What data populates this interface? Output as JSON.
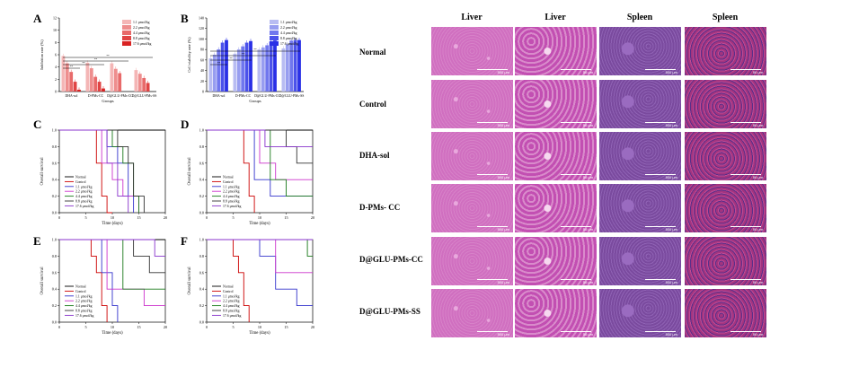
{
  "panels": [
    "A",
    "B",
    "C",
    "D",
    "E",
    "F"
  ],
  "chart_data": [
    {
      "panel": "A",
      "type": "bar",
      "categories": [
        "DHA-sol",
        "D-PMs-CC",
        "D@GLU-PMs-CC",
        "D@GLU-PMs-SS"
      ],
      "xlabel": "Groups",
      "ylabel": "Inhibition rate (%)",
      "ylim": [
        0,
        12
      ],
      "yticks": [
        "0",
        "2",
        "4",
        "6",
        "8",
        "10",
        "12"
      ],
      "series": [
        {
          "name": "1.1 μmol/kg",
          "color": "#f4b6b6",
          "values": [
            5.8,
            4.7,
            4.6,
            3.5
          ]
        },
        {
          "name": "2.2 μmol/kg",
          "color": "#ee8e8e",
          "values": [
            4.6,
            3.8,
            3.7,
            2.9
          ]
        },
        {
          "name": "4.4 μmol/kg",
          "color": "#e86a6a",
          "values": [
            3.2,
            2.4,
            3.0,
            2.2
          ]
        },
        {
          "name": "8.8 μmol/kg",
          "color": "#e04444",
          "values": [
            1.6,
            1.6,
            0,
            1.4
          ]
        },
        {
          "name": "17.6 μmol/kg",
          "color": "#d92323",
          "values": [
            0.3,
            0.5,
            0,
            0
          ]
        }
      ],
      "significance": [
        "**",
        "**",
        "**",
        "**"
      ]
    },
    {
      "panel": "B",
      "type": "bar",
      "categories": [
        "DHA-sol",
        "D-PMs-CC",
        "D@GLU-PMs-CC",
        "D@GLU-PMs-SS"
      ],
      "xlabel": "Groups",
      "ylabel": "Cell viability rate (%)",
      "ylim": [
        0,
        140
      ],
      "yticks": [
        "0",
        "20",
        "40",
        "60",
        "80",
        "100",
        "120",
        "140"
      ],
      "series": [
        {
          "name": "1.1 μmol/kg",
          "color": "#b8bcf2",
          "values": [
            63,
            72,
            80,
            82
          ]
        },
        {
          "name": "2.2 μmol/kg",
          "color": "#979df0",
          "values": [
            70,
            80,
            84,
            90
          ]
        },
        {
          "name": "4.4 μmol/kg",
          "color": "#7077ee",
          "values": [
            80,
            86,
            88,
            97
          ]
        },
        {
          "name": "8.8 μmol/kg",
          "color": "#4b52ea",
          "values": [
            93,
            93,
            95,
            98
          ]
        },
        {
          "name": "17.6 μmol/kg",
          "color": "#2a30e6",
          "values": [
            98,
            96,
            97,
            98
          ]
        }
      ],
      "significance": [
        "**",
        "**",
        "**",
        "**"
      ]
    },
    {
      "panel": "C",
      "type": "line",
      "xlabel": "Time (days)",
      "ylabel": "Overall survival",
      "xlim": [
        0,
        20
      ],
      "ylim": [
        0,
        1.0
      ],
      "xticks": [
        "0",
        "5",
        "10",
        "15",
        "20"
      ],
      "yticks": [
        "0.0",
        "0.2",
        "0.4",
        "0.6",
        "0.8",
        "1.0"
      ],
      "series": [
        {
          "name": "Normal",
          "color": "#000000",
          "x": [
            0,
            20
          ],
          "y": [
            1.0,
            1.0
          ]
        },
        {
          "name": "Control",
          "color": "#cc0000",
          "x": [
            0,
            7,
            7,
            8,
            8,
            9,
            9,
            10,
            10
          ],
          "y": [
            1.0,
            1.0,
            0.6,
            0.6,
            0.2,
            0.2,
            0,
            0,
            0
          ]
        },
        {
          "name": "1.1 μmol/kg",
          "color": "#3333cc",
          "x": [
            0,
            9,
            9,
            11,
            11,
            13,
            13,
            14,
            14
          ],
          "y": [
            1.0,
            1.0,
            0.8,
            0.8,
            0.6,
            0.6,
            0.2,
            0.2,
            0
          ]
        },
        {
          "name": "2.2 μmol/kg",
          "color": "#cc33cc",
          "x": [
            0,
            8,
            8,
            10,
            10,
            12,
            12,
            15,
            15
          ],
          "y": [
            1.0,
            1.0,
            0.6,
            0.6,
            0.4,
            0.4,
            0.2,
            0.2,
            0
          ]
        },
        {
          "name": "4.4 μmol/kg",
          "color": "#1a7a1a",
          "x": [
            0,
            10,
            10,
            12,
            12,
            14,
            14,
            15,
            15
          ],
          "y": [
            1.0,
            1.0,
            0.8,
            0.8,
            0.6,
            0.6,
            0.2,
            0.2,
            0
          ]
        },
        {
          "name": "8.8 μmol/kg",
          "color": "#333333",
          "x": [
            0,
            11,
            11,
            13,
            13,
            14,
            14,
            16,
            16
          ],
          "y": [
            1.0,
            1.0,
            0.8,
            0.8,
            0.6,
            0.6,
            0.2,
            0.2,
            0
          ]
        },
        {
          "name": "17.6 μmol/kg",
          "color": "#8833cc",
          "x": [
            0,
            9,
            9,
            11,
            11,
            13,
            13
          ],
          "y": [
            1.0,
            1.0,
            0.6,
            0.6,
            0.2,
            0.2,
            0
          ]
        }
      ]
    },
    {
      "panel": "D",
      "type": "line",
      "xlabel": "Time (days)",
      "ylabel": "Overall survival",
      "xlim": [
        0,
        20
      ],
      "ylim": [
        0,
        1.0
      ],
      "xticks": [
        "0",
        "5",
        "10",
        "15",
        "20"
      ],
      "yticks": [
        "0.0",
        "0.2",
        "0.4",
        "0.6",
        "0.8",
        "1.0"
      ],
      "series": [
        {
          "name": "Normal",
          "color": "#000000",
          "x": [
            0,
            20
          ],
          "y": [
            1.0,
            1.0
          ]
        },
        {
          "name": "Control",
          "color": "#cc0000",
          "x": [
            0,
            7,
            7,
            8,
            8,
            9,
            9
          ],
          "y": [
            1.0,
            1.0,
            0.6,
            0.6,
            0.2,
            0.2,
            0
          ]
        },
        {
          "name": "1.1 μmol/kg",
          "color": "#3333cc",
          "x": [
            0,
            9,
            9,
            12,
            12,
            20
          ],
          "y": [
            1.0,
            1.0,
            0.4,
            0.4,
            0.2,
            0.2
          ]
        },
        {
          "name": "2.2 μmol/kg",
          "color": "#cc33cc",
          "x": [
            0,
            10,
            10,
            13,
            13,
            20
          ],
          "y": [
            1.0,
            1.0,
            0.6,
            0.6,
            0.4,
            0.4
          ]
        },
        {
          "name": "4.4 μmol/kg",
          "color": "#1a7a1a",
          "x": [
            0,
            12,
            12,
            15,
            15,
            20
          ],
          "y": [
            1.0,
            1.0,
            0.4,
            0.4,
            0.2,
            0.2
          ]
        },
        {
          "name": "8.8 μmol/kg",
          "color": "#333333",
          "x": [
            0,
            15,
            15,
            17,
            17,
            20
          ],
          "y": [
            1.0,
            1.0,
            0.8,
            0.8,
            0.6,
            0.6
          ]
        },
        {
          "name": "17.6 μmol/kg",
          "color": "#8833cc",
          "x": [
            0,
            11,
            11,
            20
          ],
          "y": [
            1.0,
            1.0,
            0.8,
            0.8
          ]
        }
      ]
    },
    {
      "panel": "E",
      "type": "line",
      "xlabel": "Time (days)",
      "ylabel": "Overall survival",
      "xlim": [
        0,
        20
      ],
      "ylim": [
        0,
        1.0
      ],
      "xticks": [
        "0",
        "5",
        "10",
        "15",
        "20"
      ],
      "yticks": [
        "0.0",
        "0.2",
        "0.4",
        "0.6",
        "0.8",
        "1.0"
      ],
      "series": [
        {
          "name": "Normal",
          "color": "#000000",
          "x": [
            0,
            20
          ],
          "y": [
            1.0,
            1.0
          ]
        },
        {
          "name": "Control",
          "color": "#cc0000",
          "x": [
            0,
            6,
            6,
            7,
            7,
            8,
            8,
            9,
            9
          ],
          "y": [
            1.0,
            1.0,
            0.8,
            0.8,
            0.6,
            0.6,
            0.2,
            0.2,
            0
          ]
        },
        {
          "name": "1.1 μmol/kg",
          "color": "#3333cc",
          "x": [
            0,
            8,
            8,
            10,
            10,
            11,
            11
          ],
          "y": [
            1.0,
            1.0,
            0.6,
            0.6,
            0.2,
            0.2,
            0
          ]
        },
        {
          "name": "2.2 μmol/kg",
          "color": "#cc33cc",
          "x": [
            0,
            9,
            9,
            16,
            16,
            20
          ],
          "y": [
            1.0,
            1.0,
            0.4,
            0.4,
            0.2,
            0.2
          ]
        },
        {
          "name": "4.4 μmol/kg",
          "color": "#1a7a1a",
          "x": [
            0,
            12,
            12,
            20
          ],
          "y": [
            1.0,
            1.0,
            0.4,
            0.4
          ]
        },
        {
          "name": "8.8 μmol/kg",
          "color": "#333333",
          "x": [
            0,
            14,
            14,
            17,
            17,
            20
          ],
          "y": [
            1.0,
            1.0,
            0.8,
            0.8,
            0.6,
            0.6
          ]
        },
        {
          "name": "17.6 μmol/kg",
          "color": "#8833cc",
          "x": [
            0,
            18,
            18,
            20
          ],
          "y": [
            1.0,
            1.0,
            0.8,
            0.8
          ]
        }
      ]
    },
    {
      "panel": "F",
      "type": "line",
      "xlabel": "Time (days)",
      "ylabel": "Overall survival",
      "xlim": [
        0,
        20
      ],
      "ylim": [
        0,
        1.0
      ],
      "xticks": [
        "0",
        "5",
        "10",
        "15",
        "20"
      ],
      "yticks": [
        "0.0",
        "0.2",
        "0.4",
        "0.6",
        "0.8",
        "1.0"
      ],
      "series": [
        {
          "name": "Normal",
          "color": "#000000",
          "x": [
            0,
            20
          ],
          "y": [
            1.0,
            1.0
          ]
        },
        {
          "name": "Control",
          "color": "#cc0000",
          "x": [
            0,
            5,
            5,
            6,
            6,
            7,
            7,
            8,
            8
          ],
          "y": [
            1.0,
            1.0,
            0.8,
            0.8,
            0.6,
            0.6,
            0.2,
            0.2,
            0
          ]
        },
        {
          "name": "1.1 μmol/kg",
          "color": "#3333cc",
          "x": [
            0,
            10,
            10,
            13,
            13,
            17,
            17,
            20
          ],
          "y": [
            1.0,
            1.0,
            0.8,
            0.8,
            0.4,
            0.4,
            0.2,
            0.2
          ]
        },
        {
          "name": "2.2 μmol/kg",
          "color": "#cc33cc",
          "x": [
            0,
            13,
            13,
            20
          ],
          "y": [
            1.0,
            1.0,
            0.6,
            0.6
          ]
        },
        {
          "name": "4.4 μmol/kg",
          "color": "#1a7a1a",
          "x": [
            0,
            19,
            19,
            20
          ],
          "y": [
            1.0,
            1.0,
            0.8,
            0.8
          ]
        },
        {
          "name": "8.8 μmol/kg",
          "color": "#333333",
          "x": [
            0,
            20
          ],
          "y": [
            1.0,
            1.0
          ]
        },
        {
          "name": "17.6 μmol/kg",
          "color": "#8833cc",
          "x": [
            0,
            20
          ],
          "y": [
            1.0,
            1.0
          ]
        }
      ]
    }
  ],
  "histology": {
    "columns": [
      "Liver",
      "Liver",
      "Spleen",
      "Spleen"
    ],
    "rows": [
      "Normal",
      "Control",
      "DHA-sol",
      "D-PMs- CC",
      "D@GLU-PMs-CC",
      "D@GLU-PMs-SS"
    ],
    "scalebars": [
      "500 μm",
      "50 μm",
      "500 μm",
      "50 μm"
    ],
    "colors": {
      "liver": "#d06fc0",
      "liver_zoom": "#c24fb2",
      "spleen": "#7a4a9e",
      "spleen_zoom": "#a2347f"
    }
  }
}
